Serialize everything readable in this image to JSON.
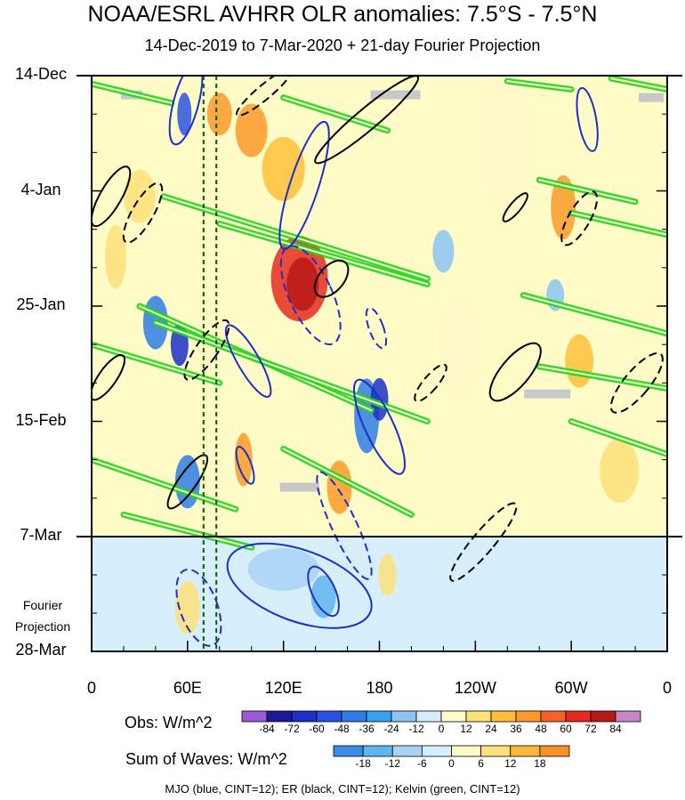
{
  "chart_data": {
    "type": "heatmap",
    "title": "NOAA/ESRL AVHRR OLR anomalies: 7.5°S - 7.5°N",
    "subtitle": "14-Dec-2019 to 7-Mar-2020 + 21-day Fourier Projection",
    "x_ticks": [
      {
        "label": "0",
        "lon": 0
      },
      {
        "label": "60E",
        "lon": 60
      },
      {
        "label": "120E",
        "lon": 120
      },
      {
        "label": "180",
        "lon": 180
      },
      {
        "label": "120W",
        "lon": 240
      },
      {
        "label": "60W",
        "lon": 300
      },
      {
        "label": "0",
        "lon": 360
      }
    ],
    "y_ticks": [
      {
        "label": "14-Dec",
        "day": 0
      },
      {
        "label": "4-Jan",
        "day": 21
      },
      {
        "label": "25-Jan",
        "day": 42
      },
      {
        "label": "15-Feb",
        "day": 63
      },
      {
        "label": "7-Mar",
        "day": 84
      },
      {
        "label": "28-Mar",
        "day": 105
      }
    ],
    "projection_label": [
      "Fourier",
      "Projection"
    ],
    "obs_colorbar": {
      "title": "Obs: W/m^2",
      "levels": [
        -84,
        -72,
        -60,
        -48,
        -36,
        -24,
        -12,
        0,
        12,
        24,
        36,
        48,
        60,
        72,
        84
      ],
      "colors": [
        "#9b59d6",
        "#1a1a99",
        "#1c2fc8",
        "#2a52e0",
        "#2e7ce6",
        "#39a0ee",
        "#8cc4f2",
        "#d6eefb",
        "#fffcc8",
        "#fde17a",
        "#fdbf3a",
        "#fb9a2a",
        "#f4622a",
        "#e42a1e",
        "#b81818",
        "#c886c8"
      ]
    },
    "waves_colorbar": {
      "title": "Sum of Waves: W/m^2",
      "levels": [
        -18,
        -12,
        -6,
        0,
        6,
        12,
        18
      ],
      "colors": [
        "#3a8ee8",
        "#5fb6ef",
        "#a7d3f3",
        "#d7eefb",
        "#fff8c8",
        "#fde07a",
        "#fbb83a",
        "#f7922a"
      ]
    },
    "footer": "MJO (blue, CINT=12); ER (black, CINT=12); Kelvin (green, CINT=12)",
    "mjo_line_lon": [
      70,
      78
    ],
    "blobs": [
      {
        "lon": 130,
        "day": 37,
        "rx": 32,
        "ry": 8,
        "color": "#e62a1e"
      },
      {
        "lon": 132,
        "day": 38,
        "rx": 18,
        "ry": 5,
        "color": "#b81818"
      },
      {
        "lon": 100,
        "day": 10,
        "rx": 18,
        "ry": 5,
        "color": "#fb9a2a"
      },
      {
        "lon": 120,
        "day": 17,
        "rx": 24,
        "ry": 6,
        "color": "#fdbf3a"
      },
      {
        "lon": 80,
        "day": 7,
        "rx": 14,
        "ry": 4,
        "color": "#fb9a2a"
      },
      {
        "lon": 58,
        "day": 7,
        "rx": 8,
        "ry": 4,
        "color": "#2a52e0"
      },
      {
        "lon": 40,
        "day": 45,
        "rx": 14,
        "ry": 5,
        "color": "#2e7ce6"
      },
      {
        "lon": 55,
        "day": 49,
        "rx": 10,
        "ry": 4,
        "color": "#1c2fc8"
      },
      {
        "lon": 60,
        "day": 74,
        "rx": 14,
        "ry": 5,
        "color": "#2e7ce6"
      },
      {
        "lon": 172,
        "day": 62,
        "rx": 14,
        "ry": 7,
        "color": "#2e7ce6"
      },
      {
        "lon": 180,
        "day": 59,
        "rx": 10,
        "ry": 4,
        "color": "#1c2fc8"
      },
      {
        "lon": 95,
        "day": 70,
        "rx": 10,
        "ry": 5,
        "color": "#fb9a2a"
      },
      {
        "lon": 155,
        "day": 75,
        "rx": 14,
        "ry": 5,
        "color": "#fb9a2a"
      },
      {
        "lon": 295,
        "day": 24,
        "rx": 14,
        "ry": 6,
        "color": "#fb9a2a"
      },
      {
        "lon": 305,
        "day": 52,
        "rx": 16,
        "ry": 5,
        "color": "#fdbf3a"
      },
      {
        "lon": 330,
        "day": 72,
        "rx": 22,
        "ry": 6,
        "color": "#fde17a"
      },
      {
        "lon": 30,
        "day": 22,
        "rx": 18,
        "ry": 5,
        "color": "#fde17a"
      },
      {
        "lon": 15,
        "day": 33,
        "rx": 12,
        "ry": 6,
        "color": "#fde17a"
      },
      {
        "lon": 60,
        "day": 97,
        "rx": 14,
        "ry": 5,
        "color": "#fde17a"
      },
      {
        "lon": 145,
        "day": 95,
        "rx": 14,
        "ry": 4,
        "color": "#5fb6ef"
      },
      {
        "lon": 120,
        "day": 90,
        "rx": 40,
        "ry": 4,
        "color": "#a7d3f3"
      },
      {
        "lon": 185,
        "day": 91,
        "rx": 10,
        "ry": 4,
        "color": "#fde07a"
      },
      {
        "lon": 230,
        "day": 50,
        "rx": 24,
        "ry": 10,
        "color": "#fff8c8"
      },
      {
        "lon": 260,
        "day": 12,
        "rx": 30,
        "ry": 14,
        "color": "#fff8c8"
      },
      {
        "lon": 220,
        "day": 32,
        "rx": 12,
        "ry": 4,
        "color": "#8cc4f2"
      },
      {
        "lon": 290,
        "day": 40,
        "rx": 10,
        "ry": 3,
        "color": "#8cc4f2"
      }
    ],
    "gray_patches": [
      {
        "lon": 25,
        "day": 3.5,
        "w": 12,
        "h": 1.5
      },
      {
        "lon": 190,
        "day": 3.5,
        "w": 28,
        "h": 1.5
      },
      {
        "lon": 350,
        "day": 4,
        "w": 14,
        "h": 1.5
      },
      {
        "lon": 285,
        "day": 58,
        "w": 26,
        "h": 1.5
      },
      {
        "lon": 130,
        "day": 75,
        "w": 22,
        "h": 1.5
      }
    ],
    "kelvin": [
      {
        "lon0": 0,
        "day0": 1.5,
        "lon1": 50,
        "day1": 5
      },
      {
        "lon0": 120,
        "day0": 4,
        "lon1": 185,
        "day1": 10
      },
      {
        "lon0": 260,
        "day0": 1,
        "lon1": 300,
        "day1": 2.5
      },
      {
        "lon0": 325,
        "day0": 0.5,
        "lon1": 360,
        "day1": 2.5
      },
      {
        "lon0": 45,
        "day0": 22,
        "lon1": 210,
        "day1": 37
      },
      {
        "lon0": 80,
        "day0": 27,
        "lon1": 210,
        "day1": 38
      },
      {
        "lon0": 280,
        "day0": 19,
        "lon1": 340,
        "day1": 23
      },
      {
        "lon0": 300,
        "day0": 25,
        "lon1": 360,
        "day1": 29
      },
      {
        "lon0": 30,
        "day0": 42,
        "lon1": 175,
        "day1": 61
      },
      {
        "lon0": 40,
        "day0": 45,
        "lon1": 210,
        "day1": 63
      },
      {
        "lon0": 270,
        "day0": 40,
        "lon1": 360,
        "day1": 47
      },
      {
        "lon0": 280,
        "day0": 53,
        "lon1": 360,
        "day1": 57
      },
      {
        "lon0": 0,
        "day0": 49,
        "lon1": 80,
        "day1": 56
      },
      {
        "lon0": 0,
        "day0": 70,
        "lon1": 90,
        "day1": 79
      },
      {
        "lon0": 120,
        "day0": 68,
        "lon1": 200,
        "day1": 80
      },
      {
        "lon0": 300,
        "day0": 63,
        "lon1": 360,
        "day1": 69
      },
      {
        "lon0": 20,
        "day0": 80,
        "lon1": 100,
        "day1": 86
      }
    ],
    "contours": [
      {
        "lon": 59,
        "day": 5,
        "rx": 14,
        "ry": 48,
        "rot": 15,
        "color": "#1c2fc8",
        "dash": false
      },
      {
        "lon": 133,
        "day": 20,
        "rx": 16,
        "ry": 75,
        "rot": 18,
        "color": "#1c2fc8",
        "dash": false
      },
      {
        "lon": 137,
        "day": 40,
        "rx": 24,
        "ry": 60,
        "rot": -25,
        "color": "#1c2fc8",
        "dash": true
      },
      {
        "lon": 98,
        "day": 52,
        "rx": 12,
        "ry": 46,
        "rot": -30,
        "color": "#1c2fc8",
        "dash": false
      },
      {
        "lon": 180,
        "day": 64,
        "rx": 16,
        "ry": 58,
        "rot": -25,
        "color": "#1c2fc8",
        "dash": false
      },
      {
        "lon": 158,
        "day": 82,
        "rx": 14,
        "ry": 66,
        "rot": -25,
        "color": "#1c2fc8",
        "dash": true
      },
      {
        "lon": 178,
        "day": 46,
        "rx": 8,
        "ry": 24,
        "rot": -20,
        "color": "#1c2fc8",
        "dash": true
      },
      {
        "lon": 96,
        "day": 71,
        "rx": 7,
        "ry": 22,
        "rot": -20,
        "color": "#1c2fc8",
        "dash": false
      },
      {
        "lon": 310,
        "day": 8,
        "rx": 10,
        "ry": 36,
        "rot": -10,
        "color": "#1c2fc8",
        "dash": false
      },
      {
        "lon": 67,
        "day": 97,
        "rx": 21,
        "ry": 45,
        "rot": -20,
        "color": "#1c2fc8",
        "dash": true
      },
      {
        "lon": 145,
        "day": 94,
        "rx": 13,
        "ry": 30,
        "rot": -25,
        "color": "#1c2fc8",
        "dash": false
      },
      {
        "lon": 130,
        "day": 93,
        "rx": 85,
        "ry": 40,
        "rot": 20,
        "color": "#1c2fc8",
        "dash": false
      },
      {
        "lon": 172,
        "day": 8,
        "rx": 12,
        "ry": 75,
        "rot": 50,
        "color": "#000",
        "dash": false
      },
      {
        "lon": 108,
        "day": 3,
        "rx": 8,
        "ry": 40,
        "rot": 50,
        "color": "#000",
        "dash": true
      },
      {
        "lon": 12,
        "day": 22,
        "rx": 12,
        "ry": 38,
        "rot": 30,
        "color": "#000",
        "dash": false
      },
      {
        "lon": 32,
        "day": 25,
        "rx": 12,
        "ry": 38,
        "rot": 30,
        "color": "#000",
        "dash": true
      },
      {
        "lon": 150,
        "day": 37,
        "rx": 14,
        "ry": 24,
        "rot": 40,
        "color": "#000",
        "dash": false
      },
      {
        "lon": 305,
        "day": 26,
        "rx": 12,
        "ry": 34,
        "rot": 30,
        "color": "#000",
        "dash": true
      },
      {
        "lon": 265,
        "day": 24,
        "rx": 6,
        "ry": 20,
        "rot": 40,
        "color": "#000",
        "dash": false
      },
      {
        "lon": 10,
        "day": 55,
        "rx": 10,
        "ry": 30,
        "rot": 35,
        "color": "#000",
        "dash": false
      },
      {
        "lon": 72,
        "day": 50,
        "rx": 12,
        "ry": 40,
        "rot": 35,
        "color": "#000",
        "dash": true
      },
      {
        "lon": 265,
        "day": 54,
        "rx": 16,
        "ry": 40,
        "rot": 40,
        "color": "#000",
        "dash": false
      },
      {
        "lon": 341,
        "day": 56,
        "rx": 14,
        "ry": 42,
        "rot": 40,
        "color": "#000",
        "dash": true
      },
      {
        "lon": 212,
        "day": 56,
        "rx": 8,
        "ry": 26,
        "rot": 40,
        "color": "#000",
        "dash": true
      },
      {
        "lon": 245,
        "day": 85,
        "rx": 12,
        "ry": 56,
        "rot": 40,
        "color": "#000",
        "dash": true
      },
      {
        "lon": 60,
        "day": 74,
        "rx": 10,
        "ry": 36,
        "rot": 35,
        "color": "#000",
        "dash": false
      }
    ]
  }
}
